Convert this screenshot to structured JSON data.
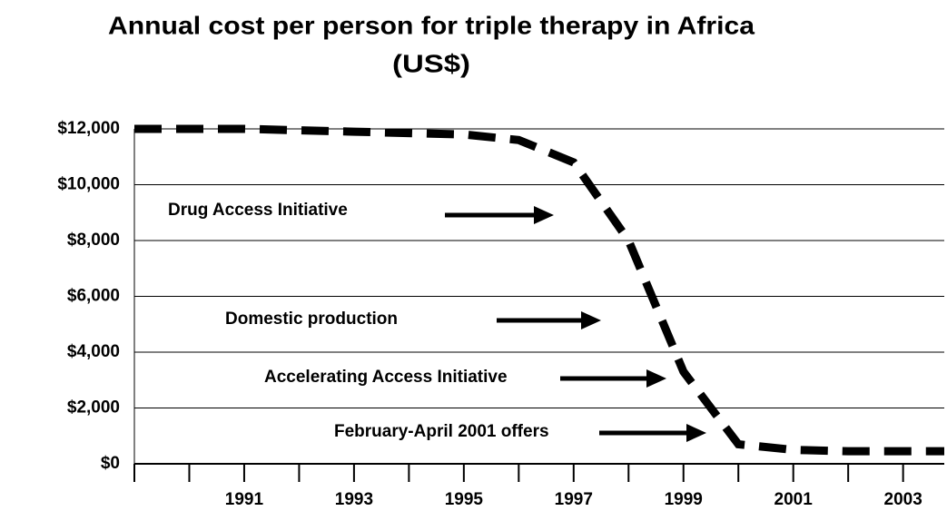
{
  "chart_data": {
    "type": "line",
    "title": "Annual cost per person for triple therapy in Africa",
    "subtitle": "(US$)",
    "x": [
      1989,
      1991,
      1993,
      1995,
      1996,
      1997,
      1998,
      1999,
      2000,
      2001,
      2002,
      2003,
      2003.75
    ],
    "series": [
      {
        "name": "Annual cost",
        "color": "#000000",
        "values": [
          12000,
          12000,
          11900,
          11800,
          11600,
          10800,
          8000,
          3300,
          700,
          500,
          450,
          450,
          450
        ]
      }
    ],
    "xlim": [
      1989,
      2003.75
    ],
    "xticks": [
      1991,
      1993,
      1995,
      1997,
      1999,
      2001,
      2003
    ],
    "minor_xticks": [
      1989,
      1990,
      1992,
      1994,
      1996,
      1998,
      2000,
      2002
    ],
    "ylim": [
      0,
      12000
    ],
    "yticks": [
      {
        "value": 0,
        "label": "$0"
      },
      {
        "value": 2000,
        "label": "$2,000"
      },
      {
        "value": 4000,
        "label": "$4,000"
      },
      {
        "value": 6000,
        "label": "$6,000"
      },
      {
        "value": 8000,
        "label": "$8,000"
      },
      {
        "value": 10000,
        "label": "$10,000"
      },
      {
        "value": 12000,
        "label": "$12,000"
      }
    ],
    "grid": true,
    "annotations": [
      "Drug Access Initiative",
      "Domestic production",
      "Accelerating Access Initiative",
      "February-April 2001 offers"
    ]
  }
}
